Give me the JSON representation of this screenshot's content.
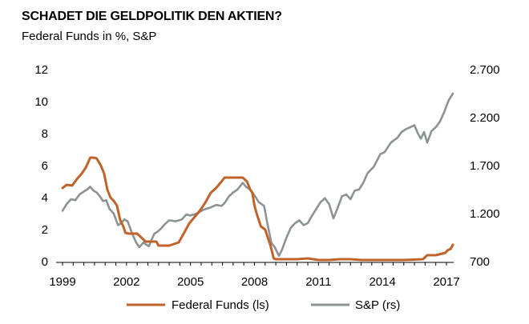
{
  "chart_data": {
    "type": "line",
    "title": "SCHADET DIE GELDPOLITIK DEN AKTIEN?",
    "subtitle": "Federal Funds in %, S&P",
    "x_ticks": [
      "1999",
      "2002",
      "2005",
      "2008",
      "2011",
      "2014",
      "2017"
    ],
    "xlim": [
      1999,
      2017.3
    ],
    "y_left_ticks": [
      "0",
      "2",
      "4",
      "6",
      "8",
      "10",
      "12"
    ],
    "ylim_left": [
      0,
      12
    ],
    "y_right_ticks": [
      "700",
      "1.200",
      "1.700",
      "2.200",
      "2.700"
    ],
    "ylim_right": [
      700,
      2700
    ],
    "grid": false,
    "legend_position": "bottom",
    "series": [
      {
        "name": "Federal Funds (ls)",
        "axis": "left",
        "color": "#c0622a",
        "x": [
          1999.0,
          1999.2,
          1999.45,
          1999.7,
          1999.9,
          2000.1,
          2000.3,
          2000.45,
          2000.6,
          2000.8,
          2000.95,
          2001.1,
          2001.25,
          2001.4,
          2001.55,
          2001.7,
          2001.85,
          2001.95,
          2002.1,
          2002.5,
          2002.9,
          2003.0,
          2003.4,
          2003.5,
          2004.0,
          2004.45,
          2004.7,
          2004.95,
          2005.2,
          2005.45,
          2005.7,
          2005.95,
          2006.2,
          2006.45,
          2006.6,
          2007.0,
          2007.45,
          2007.65,
          2007.8,
          2007.9,
          2008.0,
          2008.1,
          2008.3,
          2008.5,
          2008.75,
          2008.9,
          2009.0,
          2009.5,
          2010.0,
          2010.5,
          2011.0,
          2011.5,
          2012.0,
          2012.5,
          2013.0,
          2013.5,
          2014.0,
          2014.5,
          2015.0,
          2015.9,
          2016.1,
          2016.5,
          2016.95,
          2017.05,
          2017.2,
          2017.3
        ],
        "values": [
          4.6,
          4.8,
          4.75,
          5.2,
          5.5,
          5.9,
          6.5,
          6.5,
          6.45,
          6.0,
          5.5,
          4.5,
          4.0,
          3.8,
          3.5,
          2.6,
          2.2,
          1.8,
          1.75,
          1.75,
          1.25,
          1.25,
          1.25,
          1.0,
          1.0,
          1.2,
          1.8,
          2.4,
          2.8,
          3.2,
          3.7,
          4.3,
          4.6,
          5.0,
          5.25,
          5.25,
          5.25,
          5.0,
          4.5,
          4.3,
          3.5,
          3.0,
          2.2,
          2.0,
          1.0,
          0.2,
          0.15,
          0.15,
          0.15,
          0.2,
          0.1,
          0.1,
          0.15,
          0.15,
          0.1,
          0.1,
          0.1,
          0.1,
          0.1,
          0.15,
          0.4,
          0.4,
          0.55,
          0.7,
          0.8,
          1.05
        ]
      },
      {
        "name": "S&P (rs)",
        "axis": "right",
        "color": "#8c9395",
        "x": [
          1999.0,
          1999.2,
          1999.4,
          1999.6,
          1999.8,
          2000.0,
          2000.15,
          2000.3,
          2000.45,
          2000.6,
          2000.75,
          2000.9,
          2001.05,
          2001.2,
          2001.4,
          2001.6,
          2001.75,
          2001.9,
          2002.05,
          2002.25,
          2002.45,
          2002.6,
          2002.8,
          2002.9,
          2003.05,
          2003.3,
          2003.45,
          2003.6,
          2003.8,
          2004.0,
          2004.3,
          2004.6,
          2004.8,
          2005.0,
          2005.3,
          2005.6,
          2005.9,
          2006.2,
          2006.45,
          2006.6,
          2006.8,
          2007.0,
          2007.2,
          2007.45,
          2007.6,
          2007.8,
          2008.0,
          2008.2,
          2008.45,
          2008.6,
          2008.8,
          2008.95,
          2009.15,
          2009.3,
          2009.5,
          2009.7,
          2009.9,
          2010.1,
          2010.3,
          2010.5,
          2010.7,
          2010.9,
          2011.1,
          2011.3,
          2011.5,
          2011.7,
          2011.9,
          2012.1,
          2012.3,
          2012.5,
          2012.7,
          2012.9,
          2013.1,
          2013.3,
          2013.6,
          2013.9,
          2014.1,
          2014.4,
          2014.7,
          2014.9,
          2015.1,
          2015.3,
          2015.5,
          2015.65,
          2015.8,
          2015.95,
          2016.1,
          2016.3,
          2016.5,
          2016.7,
          2016.9,
          2017.1,
          2017.3
        ],
        "values": [
          1230,
          1300,
          1350,
          1340,
          1400,
          1430,
          1450,
          1480,
          1440,
          1420,
          1380,
          1330,
          1340,
          1250,
          1200,
          1080,
          1100,
          1140,
          1120,
          1000,
          900,
          850,
          900,
          880,
          860,
          990,
          1010,
          1040,
          1090,
          1130,
          1120,
          1140,
          1190,
          1180,
          1200,
          1240,
          1260,
          1290,
          1280,
          1310,
          1380,
          1420,
          1450,
          1520,
          1480,
          1450,
          1390,
          1320,
          1280,
          1100,
          890,
          850,
          760,
          830,
          950,
          1050,
          1100,
          1130,
          1080,
          1100,
          1180,
          1250,
          1320,
          1360,
          1300,
          1150,
          1260,
          1380,
          1400,
          1350,
          1440,
          1450,
          1520,
          1620,
          1690,
          1820,
          1840,
          1940,
          1990,
          2050,
          2080,
          2100,
          2120,
          2040,
          1980,
          2050,
          1940,
          2060,
          2100,
          2160,
          2260,
          2380,
          2450
        ]
      }
    ]
  }
}
